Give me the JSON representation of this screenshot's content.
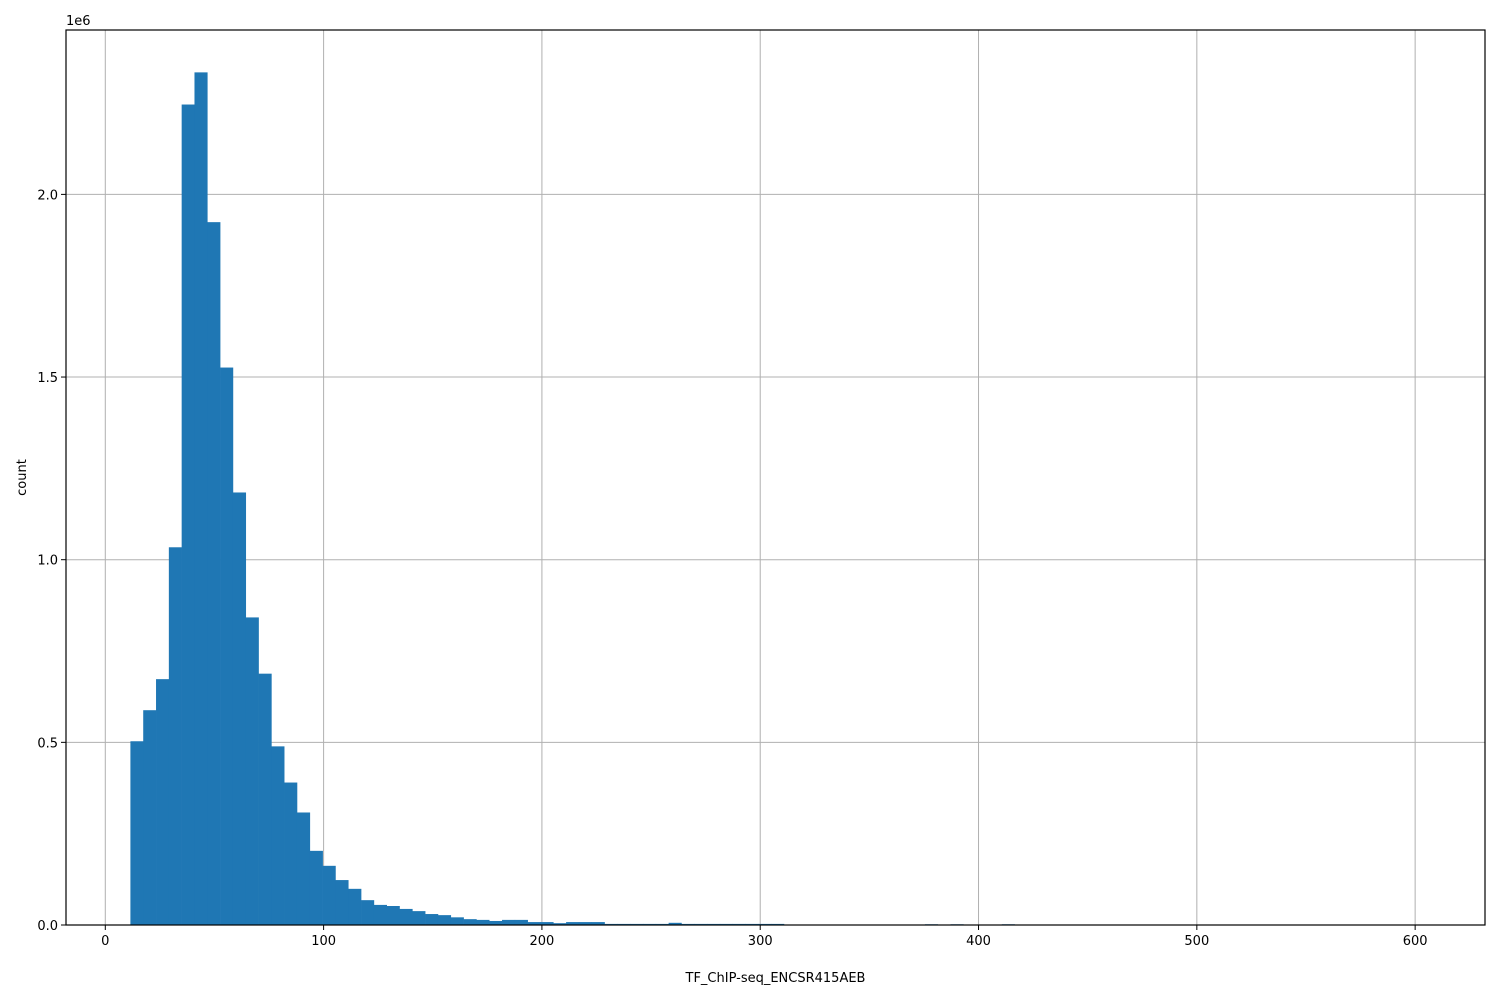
{
  "chart_data": {
    "type": "histogram",
    "title": "",
    "xlabel": "TF_ChIP-seq_ENCSR415AEB",
    "ylabel": "count",
    "y_offset_label": "1e6",
    "xlim": [
      -18,
      632
    ],
    "ylim": [
      0,
      2450000
    ],
    "grid": true,
    "bar_color": "#1f77b4",
    "grid_color": "#b0b0b0",
    "x_ticks": [
      0,
      100,
      200,
      300,
      400,
      500,
      600
    ],
    "x_tick_labels": [
      "0",
      "100",
      "200",
      "300",
      "400",
      "500",
      "600"
    ],
    "y_ticks": [
      0,
      500000,
      1000000,
      1500000,
      2000000
    ],
    "y_tick_labels": [
      "0.0",
      "0.5",
      "1.0",
      "1.5",
      "2.0"
    ],
    "bin_start": 11.5,
    "bin_width": 5.87,
    "counts": [
      503000,
      588000,
      673000,
      1034000,
      2246000,
      2334000,
      1924000,
      1526000,
      1184000,
      842000,
      688000,
      489000,
      390000,
      308000,
      203000,
      162000,
      123000,
      99000,
      68000,
      55000,
      52000,
      44000,
      38000,
      30000,
      27000,
      21000,
      16000,
      14000,
      11000,
      14000,
      14000,
      8000,
      8000,
      5000,
      8000,
      8000,
      8000,
      3000,
      3000,
      3000,
      3000,
      3000,
      6000,
      3000,
      3000,
      3000,
      3000,
      3000,
      3000,
      3000,
      3000,
      0,
      0,
      0,
      0,
      0,
      0,
      0,
      0,
      0,
      0,
      0,
      2000,
      0,
      2000,
      0,
      0,
      0,
      2000,
      0,
      0,
      0,
      0,
      0,
      0,
      0,
      0,
      0,
      0,
      0,
      0,
      0,
      0,
      0,
      0,
      0,
      0,
      0,
      0,
      0,
      0,
      0,
      0,
      0,
      0,
      0,
      0,
      0,
      0,
      0
    ]
  }
}
